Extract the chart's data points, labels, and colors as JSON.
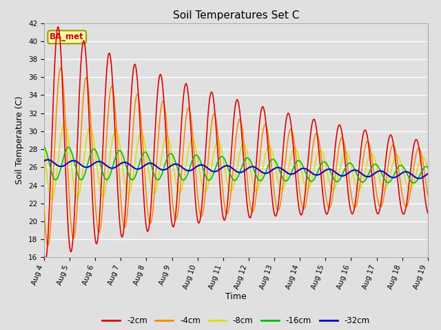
{
  "title": "Soil Temperatures Set C",
  "xlabel": "Time",
  "ylabel": "Soil Temperature (C)",
  "annotation": "BA_met",
  "ylim": [
    16,
    42
  ],
  "xlim_days": [
    0,
    15
  ],
  "tick_labels": [
    "Aug 4",
    "Aug 5",
    "Aug 6",
    "Aug 7",
    "Aug 8",
    "Aug 9",
    "Aug 10",
    "Aug 11",
    "Aug 12",
    "Aug 13",
    "Aug 14",
    "Aug 15",
    "Aug 16",
    "Aug 17",
    "Aug 18",
    "Aug 19"
  ],
  "series_labels": [
    "-2cm",
    "-4cm",
    "-8cm",
    "-16cm",
    "-32cm"
  ],
  "series_colors": [
    "#dd0000",
    "#ff8800",
    "#dddd00",
    "#00bb00",
    "#0000cc"
  ],
  "series_linewidths": [
    1.2,
    1.2,
    1.2,
    1.2,
    1.5
  ],
  "background_color": "#e0e0e0",
  "plot_bg_color": "#e0e0e0",
  "grid_color": "#ffffff",
  "title_fontsize": 11,
  "axis_label_fontsize": 9,
  "tick_fontsize": 7.5
}
